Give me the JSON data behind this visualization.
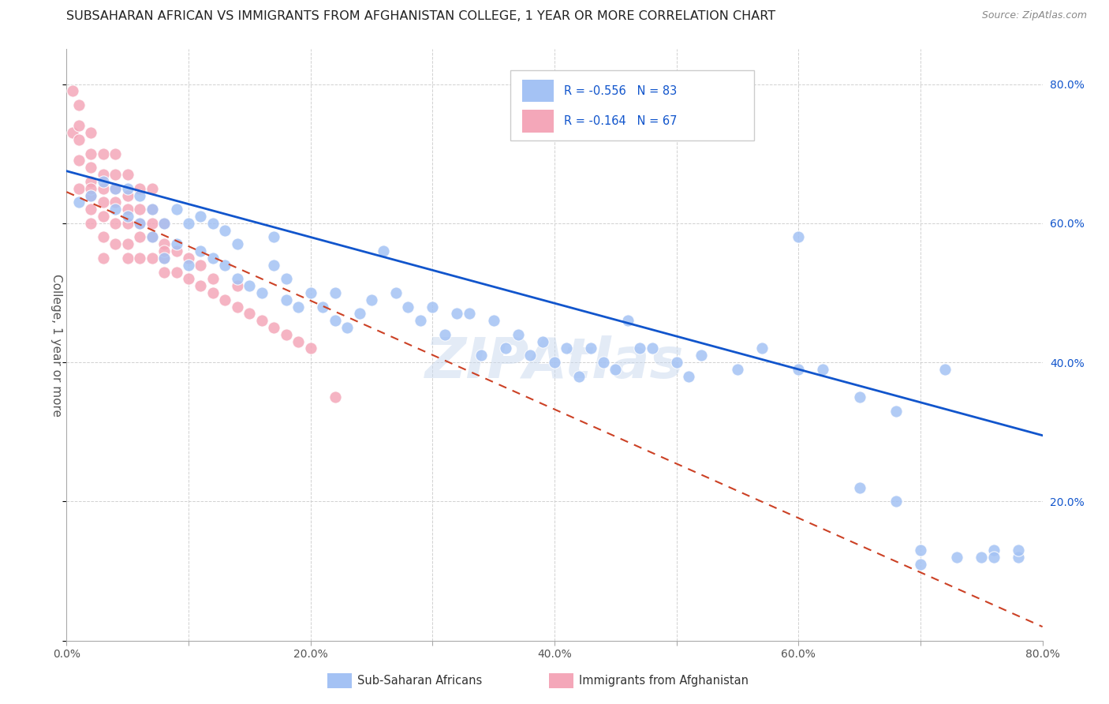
{
  "title": "SUBSAHARAN AFRICAN VS IMMIGRANTS FROM AFGHANISTAN COLLEGE, 1 YEAR OR MORE CORRELATION CHART",
  "source": "Source: ZipAtlas.com",
  "ylabel": "College, 1 year or more",
  "xlim": [
    0.0,
    0.8
  ],
  "ylim": [
    0.0,
    0.85
  ],
  "x_ticks": [
    0.0,
    0.1,
    0.2,
    0.3,
    0.4,
    0.5,
    0.6,
    0.7,
    0.8
  ],
  "x_tick_labels": [
    "0.0%",
    "",
    "20.0%",
    "",
    "40.0%",
    "",
    "60.0%",
    "",
    "80.0%"
  ],
  "y_ticks_right": [
    0.0,
    0.2,
    0.4,
    0.6,
    0.8
  ],
  "y_tick_labels_right": [
    "",
    "20.0%",
    "40.0%",
    "60.0%",
    "80.0%"
  ],
  "blue_R": "-0.556",
  "blue_N": "83",
  "pink_R": "-0.164",
  "pink_N": "67",
  "blue_color": "#a4c2f4",
  "pink_color": "#f4a7b9",
  "blue_line_color": "#1155cc",
  "pink_line_color": "#cc4125",
  "watermark": "ZIPAtlas",
  "blue_scatter_x": [
    0.01,
    0.02,
    0.03,
    0.04,
    0.04,
    0.05,
    0.05,
    0.06,
    0.06,
    0.07,
    0.07,
    0.08,
    0.08,
    0.09,
    0.09,
    0.1,
    0.1,
    0.11,
    0.11,
    0.12,
    0.12,
    0.13,
    0.13,
    0.14,
    0.14,
    0.15,
    0.16,
    0.17,
    0.17,
    0.18,
    0.18,
    0.19,
    0.2,
    0.21,
    0.22,
    0.22,
    0.23,
    0.24,
    0.25,
    0.26,
    0.27,
    0.28,
    0.29,
    0.3,
    0.31,
    0.32,
    0.33,
    0.34,
    0.35,
    0.36,
    0.37,
    0.38,
    0.39,
    0.4,
    0.41,
    0.42,
    0.43,
    0.44,
    0.45,
    0.46,
    0.47,
    0.48,
    0.5,
    0.51,
    0.52,
    0.55,
    0.57,
    0.6,
    0.62,
    0.65,
    0.68,
    0.7,
    0.72,
    0.75,
    0.76,
    0.78,
    0.6,
    0.65,
    0.68,
    0.7,
    0.73,
    0.76,
    0.78
  ],
  "blue_scatter_y": [
    0.63,
    0.64,
    0.66,
    0.62,
    0.65,
    0.61,
    0.65,
    0.6,
    0.64,
    0.58,
    0.62,
    0.55,
    0.6,
    0.57,
    0.62,
    0.54,
    0.6,
    0.56,
    0.61,
    0.55,
    0.6,
    0.54,
    0.59,
    0.52,
    0.57,
    0.51,
    0.5,
    0.54,
    0.58,
    0.49,
    0.52,
    0.48,
    0.5,
    0.48,
    0.46,
    0.5,
    0.45,
    0.47,
    0.49,
    0.56,
    0.5,
    0.48,
    0.46,
    0.48,
    0.44,
    0.47,
    0.47,
    0.41,
    0.46,
    0.42,
    0.44,
    0.41,
    0.43,
    0.4,
    0.42,
    0.38,
    0.42,
    0.4,
    0.39,
    0.46,
    0.42,
    0.42,
    0.4,
    0.38,
    0.41,
    0.39,
    0.42,
    0.58,
    0.39,
    0.22,
    0.2,
    0.11,
    0.39,
    0.12,
    0.13,
    0.12,
    0.39,
    0.35,
    0.33,
    0.13,
    0.12,
    0.12,
    0.13
  ],
  "pink_scatter_x": [
    0.005,
    0.005,
    0.01,
    0.01,
    0.01,
    0.01,
    0.01,
    0.02,
    0.02,
    0.02,
    0.02,
    0.02,
    0.02,
    0.02,
    0.02,
    0.03,
    0.03,
    0.03,
    0.03,
    0.03,
    0.03,
    0.03,
    0.04,
    0.04,
    0.04,
    0.04,
    0.04,
    0.04,
    0.05,
    0.05,
    0.05,
    0.05,
    0.05,
    0.05,
    0.06,
    0.06,
    0.06,
    0.06,
    0.06,
    0.07,
    0.07,
    0.07,
    0.07,
    0.07,
    0.08,
    0.08,
    0.08,
    0.08,
    0.08,
    0.09,
    0.09,
    0.1,
    0.1,
    0.11,
    0.11,
    0.12,
    0.12,
    0.13,
    0.14,
    0.14,
    0.15,
    0.16,
    0.17,
    0.18,
    0.19,
    0.2,
    0.22
  ],
  "pink_scatter_y": [
    0.79,
    0.73,
    0.69,
    0.74,
    0.65,
    0.77,
    0.72,
    0.6,
    0.64,
    0.66,
    0.68,
    0.7,
    0.73,
    0.62,
    0.65,
    0.58,
    0.61,
    0.63,
    0.65,
    0.67,
    0.7,
    0.55,
    0.57,
    0.6,
    0.63,
    0.65,
    0.67,
    0.7,
    0.57,
    0.6,
    0.62,
    0.64,
    0.67,
    0.55,
    0.58,
    0.6,
    0.62,
    0.65,
    0.55,
    0.55,
    0.58,
    0.6,
    0.62,
    0.65,
    0.55,
    0.57,
    0.6,
    0.53,
    0.56,
    0.53,
    0.56,
    0.52,
    0.55,
    0.51,
    0.54,
    0.5,
    0.52,
    0.49,
    0.48,
    0.51,
    0.47,
    0.46,
    0.45,
    0.44,
    0.43,
    0.42,
    0.35
  ],
  "blue_trendline_x": [
    0.0,
    0.8
  ],
  "blue_trendline_y": [
    0.675,
    0.295
  ],
  "pink_trendline_x": [
    0.0,
    0.8
  ],
  "pink_trendline_y": [
    0.645,
    0.02
  ]
}
